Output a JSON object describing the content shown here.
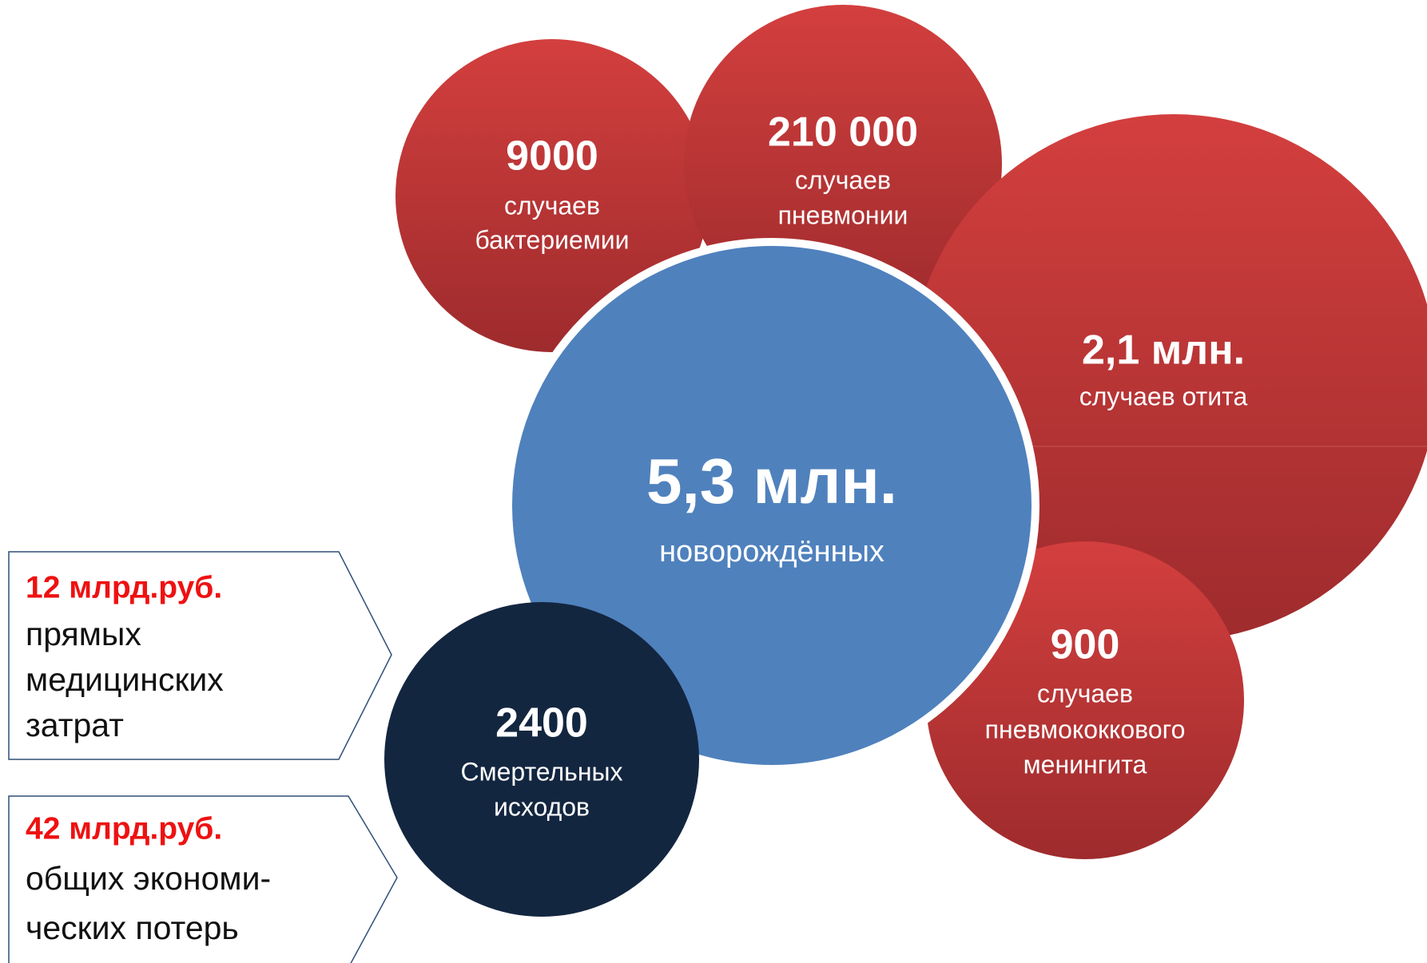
{
  "bubbles": [
    {
      "value": "9000",
      "lines": [
        "случаев",
        "бактериемии"
      ]
    },
    {
      "value": "210 000",
      "lines": [
        "случаев",
        "пневмонии"
      ]
    },
    {
      "value": "2,1 млн.",
      "lines": [
        "случаев отита"
      ]
    },
    {
      "value": "900",
      "lines": [
        "случаев",
        "пневмококкового",
        "менингита"
      ]
    },
    {
      "value": "5,3 млн.",
      "lines": [
        "новорождённых"
      ]
    },
    {
      "value": "2400",
      "lines": [
        "Смертельных",
        "исходов"
      ]
    }
  ],
  "costs": [
    {
      "amount": "12 млрд.руб.",
      "lines": [
        "прямых",
        "медицинских",
        "затрат"
      ]
    },
    {
      "amount": "42 млрд.руб.",
      "lines": [
        "общих экономи-",
        "ческих потерь"
      ]
    }
  ]
}
